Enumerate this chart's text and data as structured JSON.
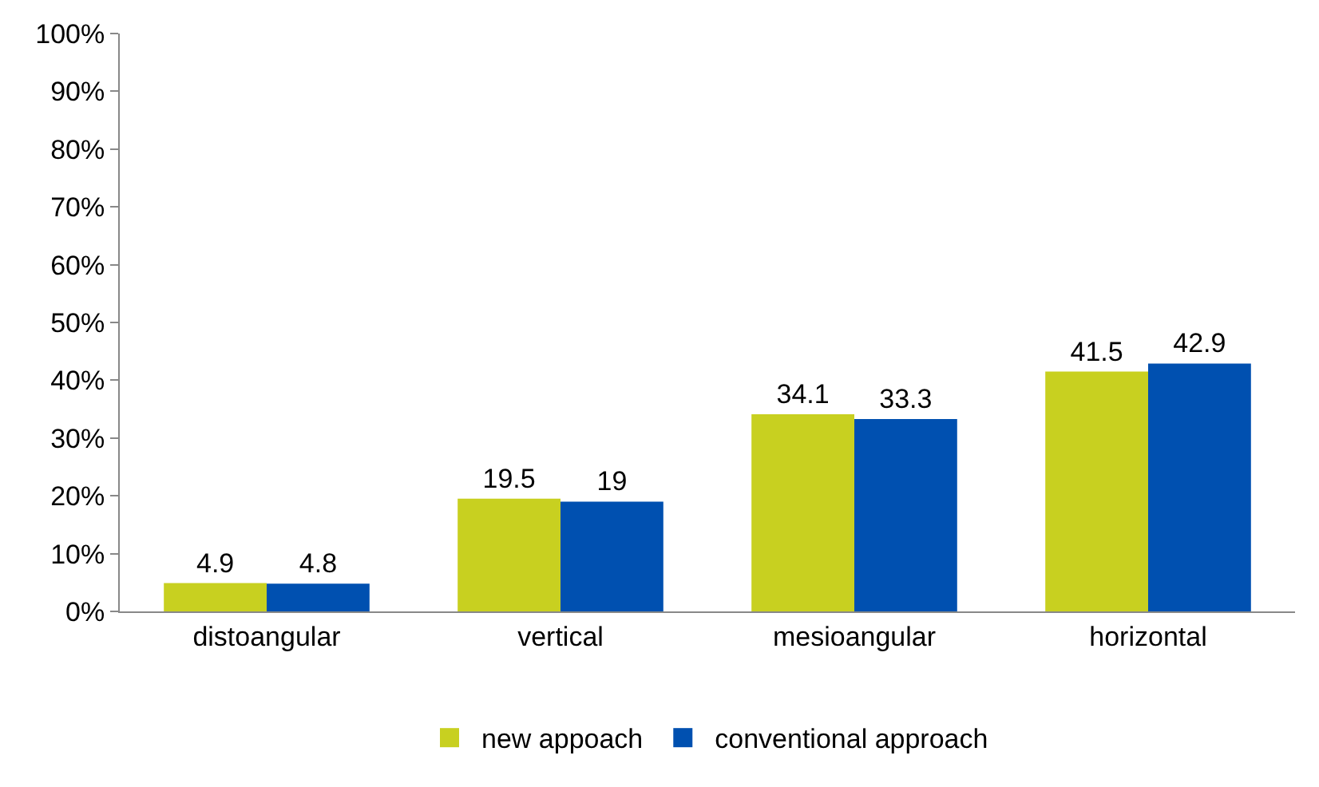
{
  "chart_data": {
    "type": "bar",
    "categories": [
      "distoangular",
      "vertical",
      "mesioangular",
      "horizontal"
    ],
    "series": [
      {
        "name": "new appoach",
        "color": "#c8d020",
        "values": [
          4.9,
          19.5,
          34.1,
          41.5
        ]
      },
      {
        "name": "conventional approach",
        "color": "#0050b0",
        "values": [
          4.8,
          19,
          33.3,
          42.9
        ]
      }
    ],
    "ylim": [
      0,
      100
    ],
    "yticks": [
      {
        "value": 0,
        "label": "0%"
      },
      {
        "value": 10,
        "label": "10%"
      },
      {
        "value": 20,
        "label": "20%"
      },
      {
        "value": 30,
        "label": "30%"
      },
      {
        "value": 40,
        "label": "40%"
      },
      {
        "value": 50,
        "label": "50%"
      },
      {
        "value": 60,
        "label": "60%"
      },
      {
        "value": 70,
        "label": "70%"
      },
      {
        "value": 80,
        "label": "80%"
      },
      {
        "value": 90,
        "label": "90%"
      },
      {
        "value": 100,
        "label": "100%"
      }
    ],
    "data_labels": true,
    "grid": false,
    "legend": "bottom"
  }
}
